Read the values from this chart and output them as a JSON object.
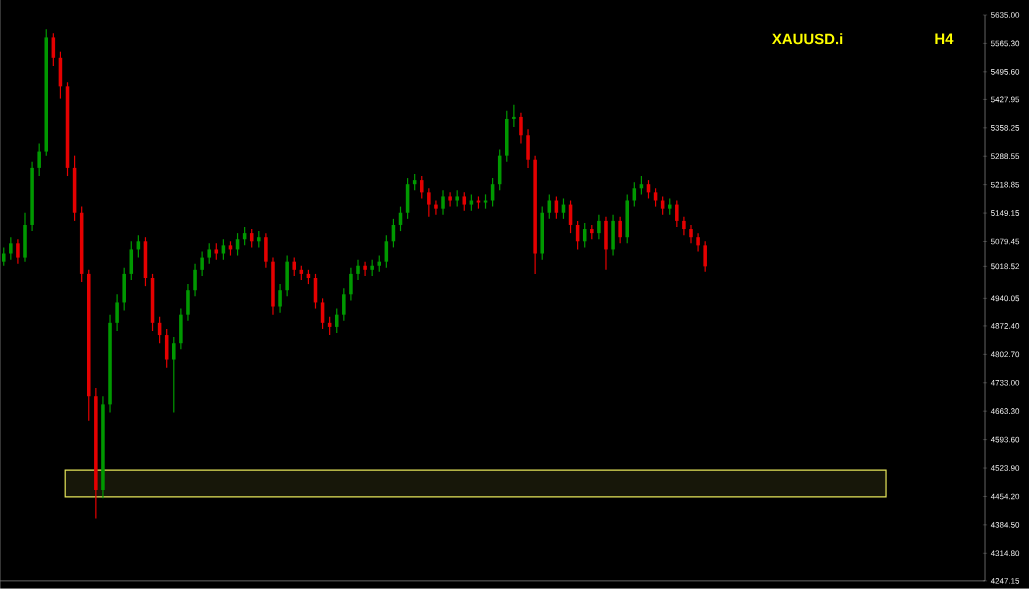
{
  "chart_data": {
    "type": "candlestick",
    "title": "XAUUSD.i",
    "subtitle": "H4",
    "categories": [
      null,
      null,
      null,
      null,
      null,
      null,
      null,
      null,
      null,
      null,
      null,
      null,
      null,
      null,
      null,
      null,
      null,
      null,
      null,
      null,
      null,
      null,
      null,
      null,
      null,
      null,
      null,
      null,
      null,
      null,
      null,
      null,
      null,
      null,
      null,
      null,
      null,
      null,
      null,
      null,
      null,
      null,
      null,
      null,
      null,
      null,
      null,
      null,
      null,
      null,
      null,
      null,
      null,
      null,
      null,
      null,
      null,
      null,
      null,
      null,
      null,
      null,
      null,
      null,
      null,
      null,
      null,
      null,
      null,
      null,
      null,
      null,
      null,
      null,
      null,
      null,
      null,
      null,
      null,
      null,
      null,
      null,
      null,
      null,
      null,
      null,
      null,
      null,
      null,
      null,
      null,
      null,
      null,
      null,
      null,
      null,
      null,
      null,
      null,
      null,
      null,
      null,
      null,
      null,
      null,
      null,
      null,
      null,
      null,
      null,
      null,
      null,
      null,
      null,
      null,
      null,
      null,
      null,
      null,
      null,
      null,
      null,
      null,
      null,
      null,
      null,
      null,
      null,
      null,
      null,
      null,
      null,
      null,
      null,
      null,
      null,
      null,
      null,
      null
    ],
    "ohlc": [
      [
        5030,
        5065,
        5020,
        5050
      ],
      [
        5050,
        5090,
        5035,
        5075
      ],
      [
        5075,
        5085,
        5025,
        5040
      ],
      [
        5040,
        5150,
        5030,
        5120
      ],
      [
        5120,
        5275,
        5105,
        5260
      ],
      [
        5260,
        5320,
        5240,
        5300
      ],
      [
        5300,
        5600,
        5290,
        5580
      ],
      [
        5580,
        5590,
        5510,
        5530
      ],
      [
        5530,
        5545,
        5430,
        5460
      ],
      [
        5460,
        5470,
        5240,
        5260
      ],
      [
        5260,
        5290,
        5130,
        5150
      ],
      [
        5150,
        5165,
        4980,
        5000
      ],
      [
        5000,
        5010,
        4640,
        4700
      ],
      [
        4700,
        4720,
        4400,
        4470
      ],
      [
        4470,
        4700,
        4450,
        4680
      ],
      [
        4680,
        4900,
        4660,
        4880
      ],
      [
        4880,
        4950,
        4860,
        4930
      ],
      [
        4930,
        5015,
        4910,
        5000
      ],
      [
        5000,
        5080,
        4985,
        5060
      ],
      [
        5060,
        5095,
        5040,
        5080
      ],
      [
        5080,
        5090,
        4970,
        4990
      ],
      [
        4990,
        5000,
        4860,
        4880
      ],
      [
        4880,
        4895,
        4830,
        4850
      ],
      [
        4850,
        4865,
        4770,
        4790
      ],
      [
        4790,
        4845,
        4660,
        4830
      ],
      [
        4830,
        4915,
        4815,
        4900
      ],
      [
        4900,
        4975,
        4885,
        4960
      ],
      [
        4960,
        5025,
        4945,
        5010
      ],
      [
        5010,
        5055,
        4995,
        5040
      ],
      [
        5040,
        5075,
        5025,
        5060
      ],
      [
        5060,
        5075,
        5035,
        5050
      ],
      [
        5050,
        5085,
        5035,
        5070
      ],
      [
        5070,
        5080,
        5045,
        5060
      ],
      [
        5060,
        5100,
        5045,
        5085
      ],
      [
        5085,
        5115,
        5070,
        5100
      ],
      [
        5100,
        5110,
        5065,
        5080
      ],
      [
        5080,
        5105,
        5065,
        5090
      ],
      [
        5090,
        5100,
        5015,
        5030
      ],
      [
        5030,
        5040,
        4900,
        4920
      ],
      [
        4920,
        4975,
        4905,
        4960
      ],
      [
        4960,
        5045,
        4945,
        5030
      ],
      [
        5030,
        5040,
        4995,
        5010
      ],
      [
        5010,
        5020,
        4985,
        5000
      ],
      [
        5000,
        5010,
        4975,
        4990
      ],
      [
        4990,
        5000,
        4915,
        4930
      ],
      [
        4930,
        4940,
        4865,
        4880
      ],
      [
        4880,
        4895,
        4850,
        4870
      ],
      [
        4870,
        4915,
        4855,
        4900
      ],
      [
        4900,
        4965,
        4885,
        4950
      ],
      [
        4950,
        5015,
        4935,
        5000
      ],
      [
        5000,
        5035,
        4985,
        5020
      ],
      [
        5020,
        5030,
        4995,
        5010
      ],
      [
        5010,
        5035,
        4995,
        5020
      ],
      [
        5020,
        5045,
        5005,
        5030
      ],
      [
        5030,
        5095,
        5015,
        5080
      ],
      [
        5080,
        5135,
        5065,
        5120
      ],
      [
        5120,
        5165,
        5105,
        5150
      ],
      [
        5150,
        5235,
        5135,
        5220
      ],
      [
        5220,
        5245,
        5205,
        5230
      ],
      [
        5230,
        5240,
        5185,
        5200
      ],
      [
        5200,
        5210,
        5140,
        5170
      ],
      [
        5170,
        5180,
        5145,
        5160
      ],
      [
        5160,
        5205,
        5145,
        5190
      ],
      [
        5190,
        5200,
        5165,
        5180
      ],
      [
        5180,
        5205,
        5165,
        5190
      ],
      [
        5190,
        5200,
        5155,
        5170
      ],
      [
        5170,
        5195,
        5155,
        5180
      ],
      [
        5180,
        5190,
        5160,
        5175
      ],
      [
        5175,
        5195,
        5160,
        5180
      ],
      [
        5180,
        5235,
        5165,
        5220
      ],
      [
        5220,
        5305,
        5205,
        5290
      ],
      [
        5290,
        5400,
        5275,
        5380
      ],
      [
        5380,
        5415,
        5360,
        5385
      ],
      [
        5385,
        5395,
        5320,
        5340
      ],
      [
        5340,
        5355,
        5260,
        5280
      ],
      [
        5280,
        5290,
        5000,
        5050
      ],
      [
        5050,
        5165,
        5035,
        5150
      ],
      [
        5150,
        5195,
        5135,
        5180
      ],
      [
        5180,
        5190,
        5135,
        5150
      ],
      [
        5150,
        5185,
        5135,
        5170
      ],
      [
        5170,
        5180,
        5100,
        5120
      ],
      [
        5120,
        5130,
        5060,
        5080
      ],
      [
        5080,
        5125,
        5065,
        5110
      ],
      [
        5110,
        5120,
        5085,
        5100
      ],
      [
        5100,
        5145,
        5085,
        5130
      ],
      [
        5130,
        5140,
        5010,
        5060
      ],
      [
        5060,
        5145,
        5045,
        5130
      ],
      [
        5130,
        5140,
        5075,
        5090
      ],
      [
        5090,
        5195,
        5075,
        5180
      ],
      [
        5180,
        5225,
        5165,
        5210
      ],
      [
        5210,
        5240,
        5195,
        5220
      ],
      [
        5220,
        5230,
        5185,
        5200
      ],
      [
        5200,
        5210,
        5165,
        5180
      ],
      [
        5180,
        5190,
        5145,
        5160
      ],
      [
        5160,
        5185,
        5145,
        5170
      ],
      [
        5170,
        5180,
        5115,
        5130
      ],
      [
        5130,
        5140,
        5095,
        5110
      ],
      [
        5110,
        5120,
        5075,
        5090
      ],
      [
        5090,
        5100,
        5055,
        5070
      ],
      [
        5070,
        5080,
        5005,
        5018.52
      ],
      null,
      null,
      null,
      null,
      null,
      null,
      null,
      null,
      null,
      null,
      null,
      null,
      null,
      null,
      null,
      null,
      null,
      null,
      null,
      null,
      null,
      null,
      null,
      null,
      null,
      null,
      null,
      null,
      null,
      null,
      null,
      null,
      null,
      null,
      null,
      null,
      null,
      null,
      null
    ],
    "ylim": [
      4247.15,
      5635.0
    ],
    "yticks": [
      {
        "value": 4247.15,
        "label": "4247.15"
      },
      {
        "value": 4314.8,
        "label": "4314.80"
      },
      {
        "value": 4384.5,
        "label": "4384.50"
      },
      {
        "value": 4454.2,
        "label": "4454.20"
      },
      {
        "value": 4523.9,
        "label": "4523.90"
      },
      {
        "value": 4593.6,
        "label": "4593.60"
      },
      {
        "value": 4663.3,
        "label": "4663.30"
      },
      {
        "value": 4733.0,
        "label": "4733.00"
      },
      {
        "value": 4802.7,
        "label": "4802.70"
      },
      {
        "value": 4872.4,
        "label": "4872.40"
      },
      {
        "value": 4940.05,
        "label": "4940.05"
      },
      {
        "value": 5018.52,
        "label": "5018.52"
      },
      {
        "value": 5079.45,
        "label": "5079.45"
      },
      {
        "value": 5149.15,
        "label": "5149.15"
      },
      {
        "value": 5218.85,
        "label": "5218.85"
      },
      {
        "value": 5288.55,
        "label": "5288.55"
      },
      {
        "value": 5358.25,
        "label": "5358.25"
      },
      {
        "value": 5427.95,
        "label": "5427.95"
      },
      {
        "value": 5495.6,
        "label": "5495.60"
      },
      {
        "value": 5565.3,
        "label": "5565.30"
      },
      {
        "value": 5635.0,
        "label": "5635.00"
      }
    ],
    "bands": [
      {
        "axis": "y",
        "from": 4453,
        "to": 4519,
        "color": "#e6e65a"
      }
    ],
    "tick_labels": "y",
    "grid": false
  }
}
